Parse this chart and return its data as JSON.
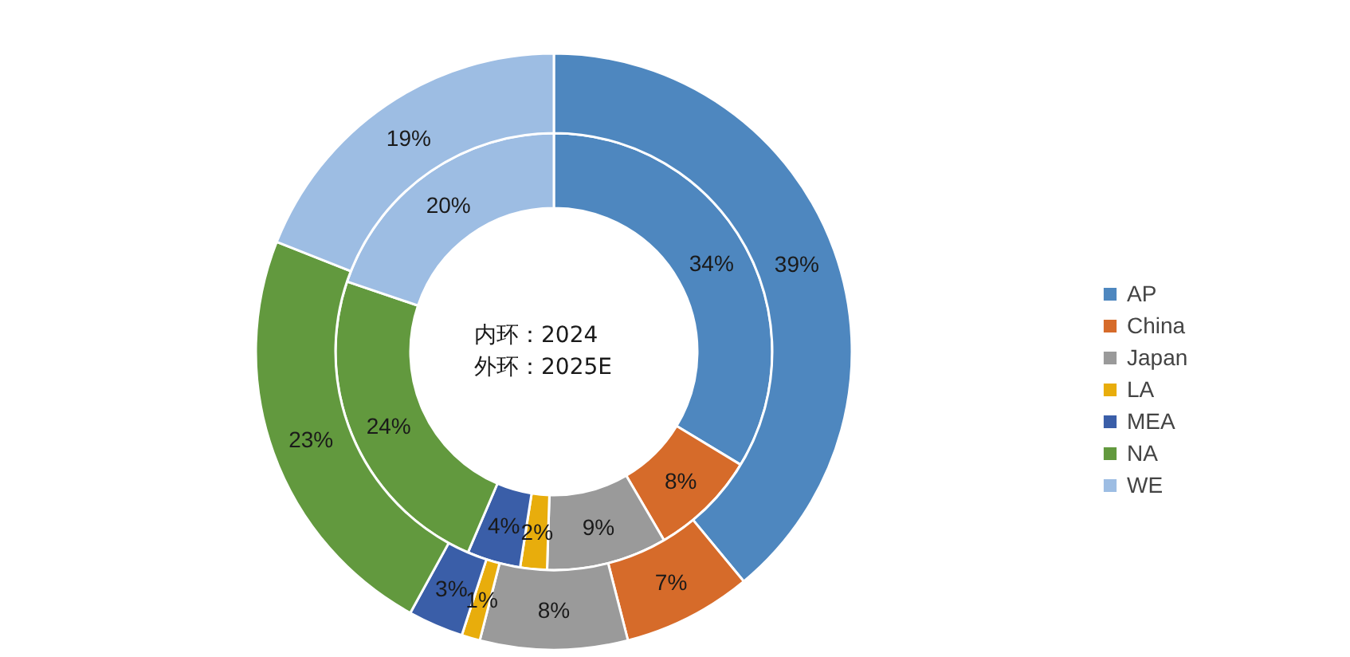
{
  "chart_data": {
    "type": "donut",
    "categories": [
      "AP",
      "China",
      "Japan",
      "LA",
      "MEA",
      "NA",
      "WE"
    ],
    "colors": [
      "#4e87bf",
      "#d66b2a",
      "#9a9a9a",
      "#e8ad0c",
      "#3a5ea8",
      "#62993e",
      "#9dbde3"
    ],
    "series": [
      {
        "values": [
          34,
          8,
          9,
          2,
          4,
          24,
          20
        ],
        "value_labels": [
          "34%",
          "8%",
          "9%",
          "2%",
          "4%",
          "24%",
          "20%"
        ]
      },
      {
        "values": [
          39,
          7,
          8,
          1,
          3,
          23,
          19
        ],
        "value_labels": [
          "39%",
          "7%",
          "8%",
          "1%",
          "3%",
          "23%",
          "19%"
        ]
      }
    ],
    "legend": "right",
    "annotations": [
      "内环：2024",
      "外环：2025E"
    ]
  }
}
